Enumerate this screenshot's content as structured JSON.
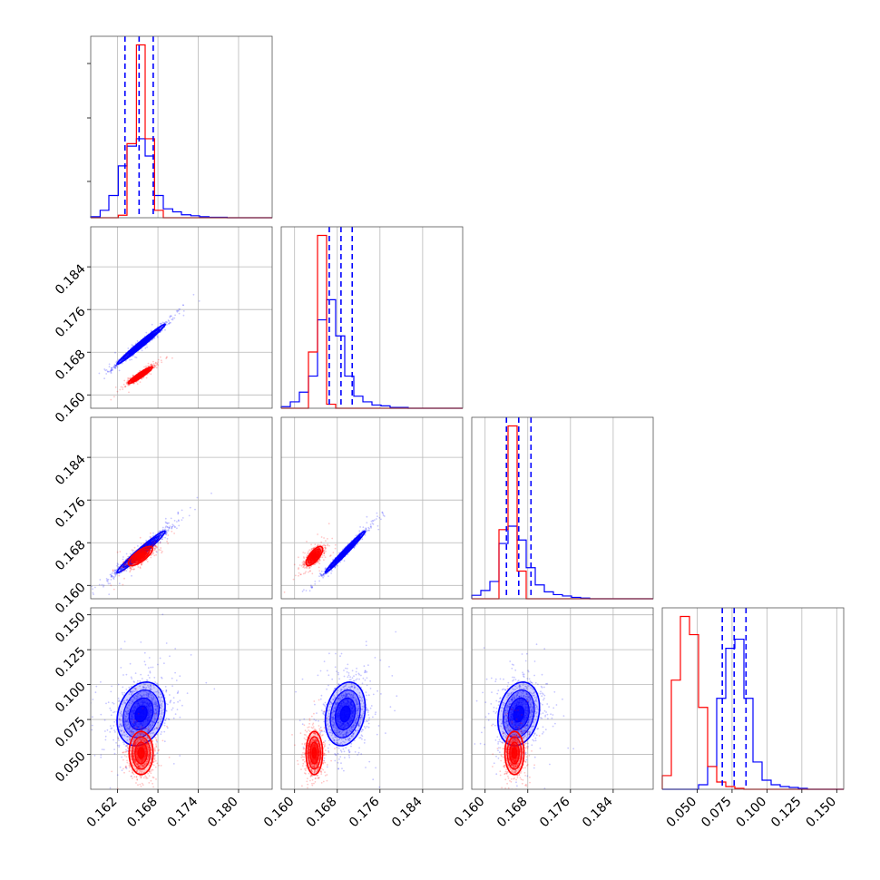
{
  "chart_data": {
    "type": "corner",
    "grid": true,
    "parameters": 4,
    "series_colors": {
      "blue": "#0000ff",
      "red": "#ff0000"
    },
    "ranges": [
      [
        0.158,
        0.185
      ],
      [
        0.1575,
        0.1915
      ],
      [
        0.1575,
        0.1915
      ],
      [
        0.025,
        0.155
      ]
    ],
    "ticks": [
      [
        0.162,
        0.168,
        0.174,
        0.18
      ],
      [
        0.16,
        0.168,
        0.176,
        0.184
      ],
      [
        0.16,
        0.168,
        0.176,
        0.184
      ],
      [
        0.05,
        0.075,
        0.1,
        0.125,
        0.15
      ]
    ],
    "tick_labels": [
      [
        "0.162",
        "0.168",
        "0.174",
        "0.180"
      ],
      [
        "0.160",
        "0.168",
        "0.176",
        "0.184"
      ],
      [
        "0.160",
        "0.168",
        "0.176",
        "0.184"
      ],
      [
        "0.050",
        "0.075",
        "0.100",
        "0.125",
        "0.150"
      ]
    ],
    "quantile_lines": [
      [
        0.1631,
        0.1652,
        0.1673
      ],
      [
        0.1665,
        0.1687,
        0.1708
      ],
      [
        0.164,
        0.1663,
        0.1686
      ],
      [
        0.068,
        0.0765,
        0.085
      ]
    ],
    "histograms": [
      {
        "edges": [
          0.158,
          0.1594,
          0.1607,
          0.1621,
          0.1634,
          0.1648,
          0.1661,
          0.1675,
          0.1688,
          0.1702,
          0.1715,
          0.1729,
          0.1742,
          0.1756,
          0.1769,
          0.1783,
          0.1796,
          0.181,
          0.1823,
          0.1837,
          0.185
        ],
        "blue": [
          0.2,
          1.5,
          4.5,
          10.5,
          14.5,
          16,
          12.5,
          4.5,
          1.8,
          1.2,
          0.6,
          0.4,
          0.2,
          0.1,
          0.1,
          0,
          0,
          0,
          0,
          0
        ],
        "red": [
          0,
          0,
          0,
          0.5,
          15,
          35,
          16,
          1.5,
          0,
          0,
          0,
          0,
          0,
          0,
          0,
          0,
          0,
          0,
          0,
          0
        ]
      },
      {
        "edges": [
          0.1575,
          0.1592,
          0.1609,
          0.1626,
          0.1643,
          0.166,
          0.1677,
          0.1694,
          0.1711,
          0.1728,
          0.1745,
          0.1762,
          0.1779,
          0.1796,
          0.1813,
          0.183,
          0.1847,
          0.1864,
          0.1881,
          0.1898,
          0.1915
        ],
        "blue": [
          0.2,
          0.8,
          2.0,
          4.0,
          11.0,
          13.5,
          9.0,
          4.0,
          1.5,
          0.8,
          0.4,
          0.3,
          0.1,
          0.1,
          0,
          0,
          0,
          0,
          0,
          0
        ],
        "red": [
          0,
          0,
          0,
          7,
          21.5,
          0.5,
          0,
          0,
          0,
          0,
          0,
          0,
          0,
          0,
          0,
          0,
          0,
          0,
          0,
          0
        ]
      },
      {
        "edges": [
          0.1575,
          0.1592,
          0.1609,
          0.1626,
          0.1643,
          0.166,
          0.1677,
          0.1694,
          0.1711,
          0.1728,
          0.1745,
          0.1762,
          0.1779,
          0.1796,
          0.1813,
          0.183,
          0.1847,
          0.1864,
          0.1881,
          0.1898,
          0.1915
        ],
        "blue": [
          0.5,
          1.2,
          2.5,
          8.0,
          10.5,
          8.5,
          4.5,
          2.0,
          1.0,
          0.6,
          0.4,
          0.2,
          0.1,
          0,
          0,
          0,
          0,
          0,
          0,
          0
        ],
        "red": [
          0,
          0,
          0,
          10,
          25,
          4,
          0,
          0,
          0,
          0,
          0,
          0,
          0,
          0,
          0,
          0,
          0,
          0,
          0,
          0
        ]
      },
      {
        "edges": [
          0.025,
          0.0315,
          0.038,
          0.0445,
          0.051,
          0.0575,
          0.064,
          0.0705,
          0.077,
          0.0835,
          0.09,
          0.0965,
          0.103,
          0.1095,
          0.116,
          0.1225,
          0.129,
          0.1355,
          0.142,
          0.1485,
          0.155
        ],
        "blue": [
          0,
          0,
          0,
          0,
          0.5,
          2.5,
          10,
          15.5,
          16.5,
          10,
          3,
          1,
          0.5,
          0.3,
          0.2,
          0.1,
          0,
          0,
          0,
          0
        ],
        "red": [
          1.5,
          12,
          19,
          17,
          9,
          2.5,
          0.8,
          0.3,
          0.1,
          0,
          0,
          0,
          0,
          0,
          0,
          0,
          0,
          0,
          0,
          0
        ]
      }
    ],
    "pairs": [
      {
        "row": 1,
        "col": 0,
        "blue": {
          "mean": [
            0.1655,
            0.1695
          ],
          "cov": [
            [
              3.2e-06,
              3.3e-06
            ],
            [
              3.3e-06,
              3.5e-06
            ]
          ]
        },
        "red": {
          "mean": [
            0.1654,
            0.1637
          ],
          "cov": [
            [
              8e-07,
              6.5e-07
            ],
            [
              6.5e-07,
              6e-07
            ]
          ]
        }
      },
      {
        "row": 2,
        "col": 0,
        "blue": {
          "mean": [
            0.1655,
            0.1663
          ],
          "cov": [
            [
              3.2e-06,
              3.4e-06
            ],
            [
              3.4e-06,
              3.8e-06
            ]
          ]
        },
        "red": {
          "mean": [
            0.1654,
            0.1655
          ],
          "cov": [
            [
              8e-07,
              6e-07
            ],
            [
              6e-07,
              8e-07
            ]
          ]
        }
      },
      {
        "row": 2,
        "col": 1,
        "blue": {
          "mean": [
            0.1695,
            0.1663
          ],
          "cov": [
            [
              3.5e-06,
              3.6e-06
            ],
            [
              3.6e-06,
              3.8e-06
            ]
          ]
        },
        "red": {
          "mean": [
            0.1637,
            0.1655
          ],
          "cov": [
            [
              6e-07,
              5e-07
            ],
            [
              5e-07,
              8e-07
            ]
          ]
        }
      },
      {
        "row": 3,
        "col": 0,
        "blue": {
          "mean": [
            0.1655,
            0.079
          ],
          "cov": [
            [
              3.2e-06,
              4.5e-06
            ],
            [
              4.5e-06,
              0.00013
            ]
          ]
        },
        "red": {
          "mean": [
            0.1655,
            0.051
          ],
          "cov": [
            [
              8e-07,
              0
            ],
            [
              0,
              6e-05
            ]
          ]
        }
      },
      {
        "row": 3,
        "col": 1,
        "blue": {
          "mean": [
            0.1695,
            0.079
          ],
          "cov": [
            [
              3.5e-06,
              4.5e-06
            ],
            [
              4.5e-06,
              0.00013
            ]
          ]
        },
        "red": {
          "mean": [
            0.1637,
            0.051
          ],
          "cov": [
            [
              6e-07,
              0
            ],
            [
              0,
              6e-05
            ]
          ]
        }
      },
      {
        "row": 3,
        "col": 2,
        "blue": {
          "mean": [
            0.1663,
            0.079
          ],
          "cov": [
            [
              3.8e-06,
              4.5e-06
            ],
            [
              4.5e-06,
              0.00013
            ]
          ]
        },
        "red": {
          "mean": [
            0.1655,
            0.051
          ],
          "cov": [
            [
              8e-07,
              0
            ],
            [
              0,
              6e-05
            ]
          ]
        }
      }
    ]
  }
}
